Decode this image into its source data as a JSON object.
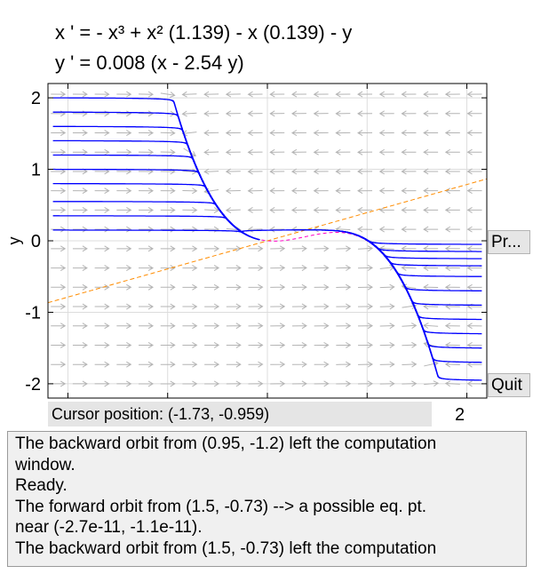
{
  "equations": {
    "line1": "x ' = - x³ + x² (1.139) - x (0.139) - y",
    "line2": "y ' = 0.008 (x - 2.54 y)"
  },
  "chart_data": {
    "type": "phase-portrait",
    "ylabel": "y",
    "xlim": [
      -2.2,
      2.2
    ],
    "ylim": [
      -2.2,
      2.2
    ],
    "ytick_labels": [
      "2",
      "1",
      "0",
      "-1",
      "-2"
    ],
    "xtick_visible": [
      "2"
    ],
    "grid": true,
    "field_arrows": true,
    "system": {
      "a": 1.139,
      "b": 0.139,
      "eps": 0.008,
      "gamma": 2.54
    },
    "nullclines": [
      {
        "name": "x-nullcline",
        "color": "#ff00c8"
      },
      {
        "name": "y-nullcline",
        "color": "#ff8c00"
      }
    ],
    "orbit_color": "#0000ff",
    "orbit_starts_y": [
      2.0,
      1.8,
      1.6,
      1.4,
      1.2,
      1.0,
      0.8,
      0.55,
      0.35,
      0.15,
      -0.05,
      -0.15,
      -0.25,
      -0.35,
      -0.5,
      -0.7,
      -0.9,
      -1.1,
      -1.3,
      -1.5,
      -1.7,
      -1.95
    ]
  },
  "buttons": {
    "print": "Pr...",
    "quit": "Quit"
  },
  "status": {
    "cursor": "Cursor position:  (-1.73, -0.959)"
  },
  "messages": [
    "The backward orbit from (0.95, -1.2) left the computation",
    "window.",
    "Ready.",
    "The forward orbit from (1.5, -0.73) --> a possible eq. pt.",
    "near (-2.7e-11, -1.1e-11).",
    "The backward orbit from (1.5, -0.73) left the computation"
  ]
}
